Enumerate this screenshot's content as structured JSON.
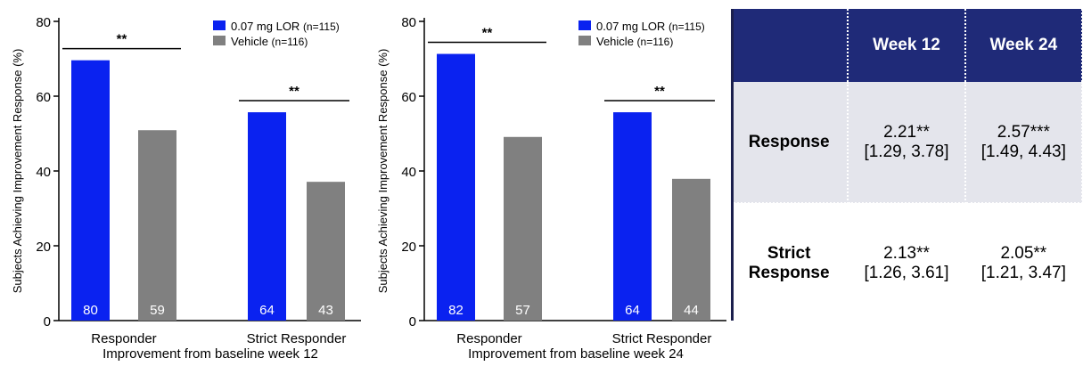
{
  "chart_data": [
    {
      "type": "bar",
      "ylabel": "Subjects Achieving Improvement Response (%)",
      "xlabel": "Improvement from baseline week 12",
      "categories": [
        "Responder",
        "Strict Responder"
      ],
      "ylim": [
        0,
        80
      ],
      "yticks": [
        0,
        20,
        40,
        60,
        80
      ],
      "series": [
        {
          "name": "0.07 mg LOR",
          "legend_suffix": "(n=115)",
          "color": "#0a22f0",
          "values": [
            69.6,
            55.7
          ],
          "bar_labels": [
            "80",
            "64"
          ]
        },
        {
          "name": "Vehicle",
          "legend_suffix": "(n=116)",
          "color": "#808080",
          "values": [
            50.9,
            37.1
          ],
          "bar_labels": [
            "59",
            "43"
          ]
        }
      ],
      "significance": [
        "**",
        "**"
      ]
    },
    {
      "type": "bar",
      "ylabel": "Subjects Achieving Improvement Response (%)",
      "xlabel": "Improvement from baseline week 24",
      "categories": [
        "Responder",
        "Strict Responder"
      ],
      "ylim": [
        0,
        80
      ],
      "yticks": [
        0,
        20,
        40,
        60,
        80
      ],
      "series": [
        {
          "name": "0.07 mg LOR",
          "legend_suffix": "(n=115)",
          "color": "#0a22f0",
          "values": [
            71.3,
            55.7
          ],
          "bar_labels": [
            "82",
            "64"
          ]
        },
        {
          "name": "Vehicle",
          "legend_suffix": "(n=116)",
          "color": "#808080",
          "values": [
            49.1,
            37.9
          ],
          "bar_labels": [
            "57",
            "44"
          ]
        }
      ],
      "significance": [
        "**",
        "**"
      ]
    }
  ],
  "table": {
    "headers": [
      "",
      "Week 12",
      "Week 24"
    ],
    "rows": [
      {
        "label_line1": "Response",
        "label_line2": "",
        "cells": [
          {
            "value": "2.21**",
            "ci": "[1.29, 3.78]"
          },
          {
            "value": "2.57***",
            "ci": "[1.49, 4.43]"
          }
        ]
      },
      {
        "label_line1": "Strict",
        "label_line2": "Response",
        "cells": [
          {
            "value": "2.13**",
            "ci": "[1.26, 3.61]"
          },
          {
            "value": "2.05**",
            "ci": "[1.21, 3.47]"
          }
        ]
      }
    ],
    "header_color": "#1f2a78",
    "shaded_row_color": "#e4e5ec"
  }
}
